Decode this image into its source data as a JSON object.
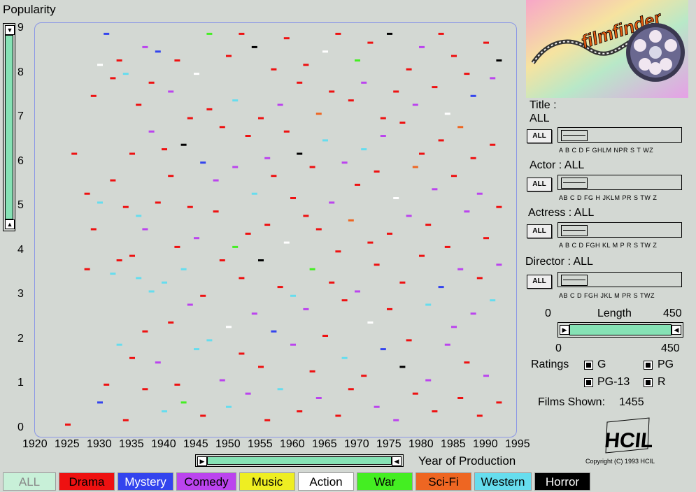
{
  "app": {
    "y_axis_title": "Popularity",
    "x_axis_title": "Year of Production",
    "copyright": "Copyright (C) 1993 HCIL"
  },
  "colors": {
    "Drama": "#ee1111",
    "Mystery": "#3344ee",
    "Comedy": "#bb44ee",
    "Music": "#eeee22",
    "Action": "#ffffff",
    "War": "#44ee22",
    "Sci-Fi": "#ee6622",
    "Western": "#66ddee",
    "Horror": "#000000",
    "ALL": "#c8f0d8"
  },
  "filters": {
    "title": {
      "label": "Title :",
      "value": "ALL",
      "button": "ALL",
      "letters": "A B C D F GHLM NPR S  T  WZ"
    },
    "actor": {
      "label": "Actor : ALL",
      "button": "ALL",
      "letters": "AB  C  D  FG H JKLM   PR S  TW Z"
    },
    "actress": {
      "label": "Actress : ALL",
      "button": "ALL",
      "letters": "A  B  C  D FGH KL M   P R S  TW Z"
    },
    "director": {
      "label": "Director : ALL",
      "button": "ALL",
      "letters": "AB  C  D FGH JKL M   PR S   TWZ"
    }
  },
  "length": {
    "label": "Length",
    "min": "0",
    "max": "450",
    "low": "0",
    "high": "450"
  },
  "ratings": {
    "label": "Ratings",
    "options": [
      {
        "name": "G",
        "checked": true
      },
      {
        "name": "PG",
        "checked": true
      },
      {
        "name": "PG-13",
        "checked": true
      },
      {
        "name": "R",
        "checked": true
      }
    ]
  },
  "films_shown": {
    "label": "Films Shown:",
    "value": "1455"
  },
  "legend": [
    {
      "name": "ALL",
      "bg": "#c8f0d8",
      "fg": "#888888"
    },
    {
      "name": "Drama",
      "bg": "#ee1111",
      "fg": "#000000"
    },
    {
      "name": "Mystery",
      "bg": "#3344ee",
      "fg": "#ffffff"
    },
    {
      "name": "Comedy",
      "bg": "#bb44ee",
      "fg": "#000000"
    },
    {
      "name": "Music",
      "bg": "#eeee22",
      "fg": "#000000"
    },
    {
      "name": "Action",
      "bg": "#ffffff",
      "fg": "#000000"
    },
    {
      "name": "War",
      "bg": "#44ee22",
      "fg": "#000000"
    },
    {
      "name": "Sci-Fi",
      "bg": "#ee6622",
      "fg": "#000000"
    },
    {
      "name": "Western",
      "bg": "#66ddee",
      "fg": "#000000"
    },
    {
      "name": "Horror",
      "bg": "#000000",
      "fg": "#ffffff"
    }
  ],
  "chart_data": {
    "type": "scatter",
    "xlabel": "Year of Production",
    "ylabel": "Popularity",
    "xlim": [
      1920,
      1995
    ],
    "ylim": [
      0,
      9
    ],
    "x_ticks": [
      "1920",
      "1925",
      "1930",
      "1935",
      "1940",
      "1945",
      "1950",
      "1955",
      "1960",
      "1965",
      "1970",
      "1975",
      "1980",
      "1985",
      "1990",
      "1995"
    ],
    "y_ticks": [
      "0",
      "1",
      "2",
      "3",
      "4",
      "5",
      "6",
      "7",
      "8",
      "9"
    ],
    "film_count": 1455,
    "points": [
      [
        1925,
        0.1,
        "Drama"
      ],
      [
        1926,
        6.2,
        "Drama"
      ],
      [
        1928,
        3.6,
        "Drama"
      ],
      [
        1928,
        5.3,
        "Drama"
      ],
      [
        1929,
        4.5,
        "Drama"
      ],
      [
        1929,
        7.5,
        "Drama"
      ],
      [
        1930,
        8.2,
        "Action"
      ],
      [
        1930,
        0.6,
        "Mystery"
      ],
      [
        1930,
        5.1,
        "Western"
      ],
      [
        1931,
        8.9,
        "Mystery"
      ],
      [
        1931,
        1.0,
        "Drama"
      ],
      [
        1932,
        3.5,
        "Western"
      ],
      [
        1932,
        7.9,
        "Drama"
      ],
      [
        1932,
        5.6,
        "Drama"
      ],
      [
        1933,
        3.8,
        "Drama"
      ],
      [
        1933,
        1.9,
        "Western"
      ],
      [
        1933,
        8.3,
        "Drama"
      ],
      [
        1934,
        8.0,
        "Western"
      ],
      [
        1934,
        0.2,
        "Drama"
      ],
      [
        1934,
        5.0,
        "Drama"
      ],
      [
        1935,
        6.2,
        "Drama"
      ],
      [
        1935,
        3.9,
        "Drama"
      ],
      [
        1935,
        1.6,
        "Drama"
      ],
      [
        1936,
        7.3,
        "Drama"
      ],
      [
        1936,
        3.4,
        "Western"
      ],
      [
        1936,
        4.8,
        "Western"
      ],
      [
        1937,
        8.6,
        "Comedy"
      ],
      [
        1937,
        2.2,
        "Drama"
      ],
      [
        1937,
        4.5,
        "Comedy"
      ],
      [
        1937,
        0.9,
        "Drama"
      ],
      [
        1938,
        6.7,
        "Comedy"
      ],
      [
        1938,
        3.1,
        "Western"
      ],
      [
        1938,
        7.8,
        "Drama"
      ],
      [
        1939,
        5.1,
        "Drama"
      ],
      [
        1939,
        1.5,
        "Comedy"
      ],
      [
        1939,
        8.5,
        "Mystery"
      ],
      [
        1940,
        3.3,
        "Western"
      ],
      [
        1940,
        6.3,
        "Drama"
      ],
      [
        1940,
        0.4,
        "Western"
      ],
      [
        1941,
        7.6,
        "Comedy"
      ],
      [
        1941,
        2.4,
        "Drama"
      ],
      [
        1941,
        5.7,
        "Drama"
      ],
      [
        1942,
        4.1,
        "Drama"
      ],
      [
        1942,
        8.3,
        "Drama"
      ],
      [
        1942,
        1.0,
        "Drama"
      ],
      [
        1943,
        6.4,
        "Horror"
      ],
      [
        1943,
        3.6,
        "Western"
      ],
      [
        1943,
        0.6,
        "War"
      ],
      [
        1944,
        7.0,
        "Drama"
      ],
      [
        1944,
        5.0,
        "Drama"
      ],
      [
        1944,
        2.8,
        "Comedy"
      ],
      [
        1945,
        8.0,
        "Action"
      ],
      [
        1945,
        1.8,
        "Western"
      ],
      [
        1945,
        4.3,
        "Comedy"
      ],
      [
        1946,
        6.0,
        "Mystery"
      ],
      [
        1946,
        3.0,
        "Drama"
      ],
      [
        1946,
        0.3,
        "Drama"
      ],
      [
        1947,
        8.9,
        "War"
      ],
      [
        1947,
        7.2,
        "Drama"
      ],
      [
        1947,
        2.0,
        "Western"
      ],
      [
        1948,
        4.9,
        "Drama"
      ],
      [
        1948,
        5.6,
        "Comedy"
      ],
      [
        1949,
        6.8,
        "Drama"
      ],
      [
        1949,
        1.1,
        "Comedy"
      ],
      [
        1949,
        3.8,
        "Drama"
      ],
      [
        1950,
        8.4,
        "Drama"
      ],
      [
        1950,
        2.3,
        "Action"
      ],
      [
        1950,
        0.5,
        "Western"
      ],
      [
        1951,
        5.9,
        "Comedy"
      ],
      [
        1951,
        7.4,
        "Western"
      ],
      [
        1951,
        4.1,
        "War"
      ],
      [
        1952,
        3.4,
        "Drama"
      ],
      [
        1952,
        8.9,
        "Drama"
      ],
      [
        1952,
        1.7,
        "Drama"
      ],
      [
        1953,
        6.6,
        "Drama"
      ],
      [
        1953,
        0.8,
        "Comedy"
      ],
      [
        1953,
        4.4,
        "Drama"
      ],
      [
        1954,
        8.6,
        "Horror"
      ],
      [
        1954,
        2.6,
        "Comedy"
      ],
      [
        1954,
        5.3,
        "Western"
      ],
      [
        1955,
        7.0,
        "Drama"
      ],
      [
        1955,
        3.8,
        "Horror"
      ],
      [
        1955,
        1.4,
        "Drama"
      ],
      [
        1956,
        6.1,
        "Comedy"
      ],
      [
        1956,
        0.2,
        "Drama"
      ],
      [
        1956,
        4.6,
        "Drama"
      ],
      [
        1957,
        8.1,
        "Drama"
      ],
      [
        1957,
        2.2,
        "Mystery"
      ],
      [
        1957,
        5.7,
        "Drama"
      ],
      [
        1958,
        3.2,
        "Drama"
      ],
      [
        1958,
        7.3,
        "Comedy"
      ],
      [
        1958,
        0.9,
        "Western"
      ],
      [
        1959,
        4.2,
        "Action"
      ],
      [
        1959,
        6.7,
        "Drama"
      ],
      [
        1959,
        8.8,
        "Drama"
      ],
      [
        1960,
        1.9,
        "Comedy"
      ],
      [
        1960,
        5.2,
        "Drama"
      ],
      [
        1960,
        3.0,
        "Western"
      ],
      [
        1961,
        7.8,
        "Drama"
      ],
      [
        1961,
        0.4,
        "Drama"
      ],
      [
        1961,
        6.2,
        "Horror"
      ],
      [
        1962,
        4.8,
        "Drama"
      ],
      [
        1962,
        2.7,
        "Comedy"
      ],
      [
        1962,
        8.2,
        "Drama"
      ],
      [
        1963,
        5.9,
        "Drama"
      ],
      [
        1963,
        1.3,
        "Drama"
      ],
      [
        1963,
        3.6,
        "War"
      ],
      [
        1964,
        7.1,
        "Sci-Fi"
      ],
      [
        1964,
        0.7,
        "Comedy"
      ],
      [
        1964,
        4.5,
        "Drama"
      ],
      [
        1965,
        8.5,
        "Action"
      ],
      [
        1965,
        2.1,
        "Drama"
      ],
      [
        1965,
        6.5,
        "Western"
      ],
      [
        1966,
        3.3,
        "Drama"
      ],
      [
        1966,
        5.1,
        "Comedy"
      ],
      [
        1966,
        7.6,
        "Drama"
      ],
      [
        1967,
        0.3,
        "Drama"
      ],
      [
        1967,
        4.0,
        "Drama"
      ],
      [
        1967,
        8.9,
        "Drama"
      ],
      [
        1968,
        1.6,
        "Western"
      ],
      [
        1968,
        6.0,
        "Comedy"
      ],
      [
        1968,
        2.9,
        "Drama"
      ],
      [
        1969,
        7.4,
        "Drama"
      ],
      [
        1969,
        4.7,
        "Sci-Fi"
      ],
      [
        1969,
        0.9,
        "Drama"
      ],
      [
        1970,
        8.3,
        "War"
      ],
      [
        1970,
        5.5,
        "Drama"
      ],
      [
        1970,
        3.1,
        "Comedy"
      ],
      [
        1971,
        6.3,
        "Western"
      ],
      [
        1971,
        1.2,
        "Drama"
      ],
      [
        1971,
        7.8,
        "Comedy"
      ],
      [
        1972,
        4.2,
        "Drama"
      ],
      [
        1972,
        2.4,
        "Action"
      ],
      [
        1972,
        8.7,
        "Drama"
      ],
      [
        1973,
        5.8,
        "Drama"
      ],
      [
        1973,
        0.5,
        "Comedy"
      ],
      [
        1973,
        3.7,
        "Drama"
      ],
      [
        1974,
        7.0,
        "Drama"
      ],
      [
        1974,
        6.6,
        "Comedy"
      ],
      [
        1974,
        1.8,
        "Mystery"
      ],
      [
        1975,
        8.9,
        "Horror"
      ],
      [
        1975,
        4.4,
        "Drama"
      ],
      [
        1975,
        2.7,
        "Drama"
      ],
      [
        1976,
        5.2,
        "Action"
      ],
      [
        1976,
        7.6,
        "Drama"
      ],
      [
        1976,
        0.2,
        "Comedy"
      ],
      [
        1977,
        3.3,
        "Drama"
      ],
      [
        1977,
        6.9,
        "Drama"
      ],
      [
        1977,
        1.4,
        "Horror"
      ],
      [
        1978,
        8.1,
        "Drama"
      ],
      [
        1978,
        4.8,
        "Comedy"
      ],
      [
        1978,
        2.0,
        "Drama"
      ],
      [
        1979,
        5.9,
        "Sci-Fi"
      ],
      [
        1979,
        7.3,
        "Comedy"
      ],
      [
        1979,
        0.8,
        "Drama"
      ],
      [
        1980,
        3.9,
        "Drama"
      ],
      [
        1980,
        8.6,
        "Comedy"
      ],
      [
        1980,
        6.2,
        "Drama"
      ],
      [
        1981,
        1.1,
        "Comedy"
      ],
      [
        1981,
        4.6,
        "Drama"
      ],
      [
        1981,
        2.8,
        "Western"
      ],
      [
        1982,
        7.7,
        "Drama"
      ],
      [
        1982,
        5.4,
        "Comedy"
      ],
      [
        1982,
        0.4,
        "Drama"
      ],
      [
        1983,
        8.9,
        "Drama"
      ],
      [
        1983,
        3.2,
        "Mystery"
      ],
      [
        1983,
        6.5,
        "Drama"
      ],
      [
        1984,
        1.9,
        "Comedy"
      ],
      [
        1984,
        4.1,
        "Drama"
      ],
      [
        1984,
        7.1,
        "Action"
      ],
      [
        1985,
        5.7,
        "Drama"
      ],
      [
        1985,
        2.3,
        "Comedy"
      ],
      [
        1985,
        8.4,
        "Drama"
      ],
      [
        1986,
        0.7,
        "Drama"
      ],
      [
        1986,
        3.6,
        "Comedy"
      ],
      [
        1986,
        6.8,
        "Sci-Fi"
      ],
      [
        1987,
        8.0,
        "Drama"
      ],
      [
        1987,
        4.9,
        "Comedy"
      ],
      [
        1987,
        1.5,
        "Drama"
      ],
      [
        1988,
        6.1,
        "Drama"
      ],
      [
        1988,
        2.6,
        "Comedy"
      ],
      [
        1988,
        7.5,
        "Mystery"
      ],
      [
        1989,
        3.4,
        "Drama"
      ],
      [
        1989,
        0.3,
        "Drama"
      ],
      [
        1989,
        5.3,
        "Comedy"
      ],
      [
        1990,
        8.7,
        "Drama"
      ],
      [
        1990,
        4.3,
        "Drama"
      ],
      [
        1990,
        1.2,
        "Comedy"
      ],
      [
        1991,
        6.4,
        "Drama"
      ],
      [
        1991,
        2.9,
        "Western"
      ],
      [
        1991,
        7.9,
        "Comedy"
      ],
      [
        1992,
        5.0,
        "Drama"
      ],
      [
        1992,
        0.6,
        "Drama"
      ],
      [
        1992,
        3.7,
        "Comedy"
      ],
      [
        1992,
        8.3,
        "Horror"
      ]
    ]
  }
}
